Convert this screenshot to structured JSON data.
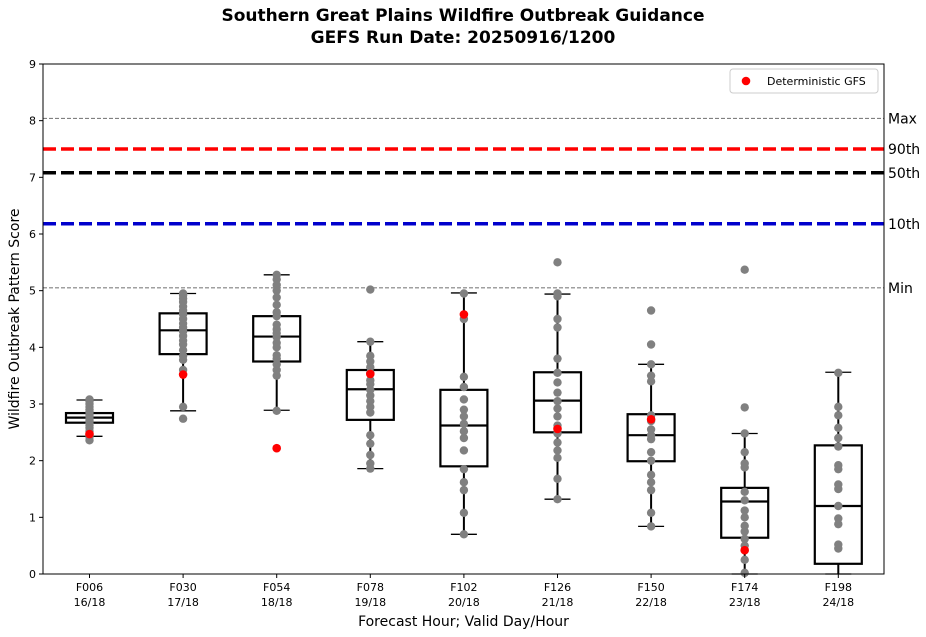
{
  "chart_data": {
    "type": "box",
    "title": "Southern Great Plains Wildfire Outbreak Guidance",
    "subtitle": "GEFS Run Date: 20250916/1200",
    "xlabel": "Forecast Hour; Valid Day/Hour",
    "ylabel": "Wildfire Outbreak Pattern Score",
    "ylim": [
      0,
      9
    ],
    "yticks": [
      "0",
      "1",
      "2",
      "3",
      "4",
      "5",
      "6",
      "7",
      "8",
      "9"
    ],
    "grid": false,
    "legend": {
      "placement": "top-right",
      "entries": [
        {
          "label": "Deterministic GFS",
          "color": "#ff0000"
        }
      ]
    },
    "categories": [
      {
        "hour": "F006",
        "valid": "16/18"
      },
      {
        "hour": "F030",
        "valid": "17/18"
      },
      {
        "hour": "F054",
        "valid": "18/18"
      },
      {
        "hour": "F078",
        "valid": "19/18"
      },
      {
        "hour": "F102",
        "valid": "20/18"
      },
      {
        "hour": "F126",
        "valid": "21/18"
      },
      {
        "hour": "F150",
        "valid": "22/18"
      },
      {
        "hour": "F174",
        "valid": "23/18"
      },
      {
        "hour": "F198",
        "valid": "24/18"
      }
    ],
    "climatology_lines": [
      {
        "label": "Max",
        "value": 8.04,
        "color": "#808080",
        "style": "thin-dashed"
      },
      {
        "label": "90th",
        "value": 7.5,
        "color": "#ff0000",
        "style": "thick-dashed"
      },
      {
        "label": "50th",
        "value": 7.08,
        "color": "#000000",
        "style": "thick-dashed"
      },
      {
        "label": "10th",
        "value": 6.18,
        "color": "#0000cc",
        "style": "thick-dashed"
      },
      {
        "label": "Min",
        "value": 5.05,
        "color": "#808080",
        "style": "thin-dashed"
      }
    ],
    "boxes": [
      {
        "whisker_low": 2.43,
        "q1": 2.67,
        "median": 2.76,
        "q3": 2.84,
        "whisker_high": 3.07
      },
      {
        "whisker_low": 2.88,
        "q1": 3.88,
        "median": 4.3,
        "q3": 4.6,
        "whisker_high": 4.95
      },
      {
        "whisker_low": 2.89,
        "q1": 3.75,
        "median": 4.19,
        "q3": 4.55,
        "whisker_high": 5.28
      },
      {
        "whisker_low": 1.86,
        "q1": 2.72,
        "median": 3.26,
        "q3": 3.6,
        "whisker_high": 4.1
      },
      {
        "whisker_low": 0.7,
        "q1": 1.9,
        "median": 2.62,
        "q3": 3.25,
        "whisker_high": 4.96
      },
      {
        "whisker_low": 1.32,
        "q1": 2.5,
        "median": 3.06,
        "q3": 3.56,
        "whisker_high": 4.94
      },
      {
        "whisker_low": 0.84,
        "q1": 1.99,
        "median": 2.45,
        "q3": 2.82,
        "whisker_high": 3.7
      },
      {
        "whisker_low": 0.0,
        "q1": 0.64,
        "median": 1.28,
        "q3": 1.52,
        "whisker_high": 2.48
      },
      {
        "whisker_low": 0.0,
        "q1": 0.18,
        "median": 1.2,
        "q3": 2.27,
        "whisker_high": 3.56
      }
    ],
    "members": [
      [
        2.36,
        2.42,
        2.46,
        2.52,
        2.58,
        2.62,
        2.66,
        2.7,
        2.74,
        2.78,
        2.82,
        2.86,
        2.9,
        2.95,
        3.0,
        3.05,
        3.08
      ],
      [
        2.74,
        2.95,
        3.6,
        3.78,
        3.85,
        3.95,
        4.05,
        4.12,
        4.2,
        4.28,
        4.35,
        4.42,
        4.5,
        4.58,
        4.65,
        4.72,
        4.8,
        4.86,
        4.92,
        4.95
      ],
      [
        2.88,
        3.5,
        3.6,
        3.7,
        3.8,
        3.86,
        4.0,
        4.08,
        4.18,
        4.25,
        4.32,
        4.4,
        4.55,
        4.62,
        4.75,
        4.88,
        5.0,
        5.1,
        5.2,
        5.28
      ],
      [
        1.86,
        1.95,
        2.1,
        2.3,
        2.45,
        2.85,
        2.95,
        3.05,
        3.15,
        3.25,
        3.35,
        3.42,
        3.55,
        3.65,
        3.75,
        3.85,
        4.1,
        5.02
      ],
      [
        0.7,
        1.08,
        1.48,
        1.62,
        1.85,
        2.18,
        2.4,
        2.52,
        2.65,
        2.78,
        2.9,
        3.08,
        3.3,
        3.48,
        4.5,
        4.95
      ],
      [
        1.32,
        1.68,
        2.05,
        2.18,
        2.32,
        2.48,
        2.62,
        2.78,
        2.92,
        3.05,
        3.2,
        3.38,
        3.55,
        3.8,
        4.35,
        4.5,
        4.9,
        4.95,
        5.5
      ],
      [
        0.84,
        1.08,
        1.48,
        1.62,
        1.75,
        2.0,
        2.15,
        2.38,
        2.45,
        2.55,
        2.7,
        2.8,
        3.4,
        3.5,
        3.7,
        4.05,
        4.65
      ],
      [
        0.02,
        0.25,
        0.5,
        0.62,
        0.75,
        0.85,
        1.0,
        1.12,
        1.3,
        1.45,
        1.88,
        1.95,
        2.15,
        2.48,
        2.94,
        5.37
      ],
      [
        0.45,
        0.52,
        0.88,
        0.98,
        1.2,
        1.5,
        1.58,
        1.85,
        1.92,
        2.25,
        2.4,
        2.58,
        2.8,
        2.95,
        3.55
      ]
    ],
    "deterministic_gfs": [
      2.47,
      3.52,
      2.22,
      3.53,
      4.58,
      2.56,
      2.73,
      0.42,
      null
    ]
  }
}
